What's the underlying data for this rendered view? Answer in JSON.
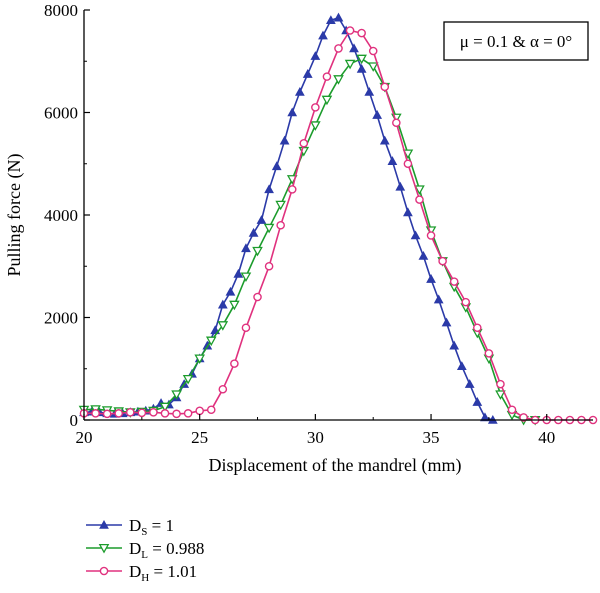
{
  "chart_data": {
    "type": "line",
    "title": "",
    "xlabel": "Displacement of the mandrel (mm)",
    "ylabel": "Pulling force (N)",
    "xlim": [
      20,
      42
    ],
    "ylim": [
      0,
      8000
    ],
    "xticks": [
      20,
      25,
      30,
      35,
      40
    ],
    "yticks": [
      0,
      2000,
      4000,
      6000,
      8000
    ],
    "annotation": "μ = 0.1 & α = 0°",
    "legend_position": "bottom-left",
    "series": [
      {
        "name": "DS = 1",
        "legend_main": "D",
        "legend_sub": "S",
        "legend_value": " = 1",
        "color": "#2b3aa8",
        "marker": "triangle-up",
        "x": [
          20,
          20.33,
          20.67,
          21,
          21.33,
          21.67,
          22,
          22.33,
          22.67,
          23,
          23.33,
          23.67,
          24,
          24.33,
          24.67,
          25,
          25.33,
          25.67,
          26,
          26.33,
          26.67,
          27,
          27.33,
          27.67,
          28,
          28.33,
          28.67,
          29,
          29.33,
          29.67,
          30,
          30.33,
          30.67,
          31,
          31.33,
          31.67,
          32,
          32.33,
          32.67,
          33,
          33.33,
          33.67,
          34,
          34.33,
          34.67,
          35,
          35.33,
          35.67,
          36,
          36.33,
          36.67,
          37,
          37.33,
          37.67
        ],
        "y": [
          150,
          160,
          150,
          130,
          120,
          130,
          150,
          160,
          180,
          220,
          330,
          300,
          440,
          700,
          900,
          1200,
          1450,
          1750,
          2250,
          2500,
          2850,
          3350,
          3650,
          3900,
          4500,
          4950,
          5450,
          6000,
          6400,
          6750,
          7100,
          7500,
          7800,
          7850,
          7600,
          7250,
          6850,
          6400,
          5950,
          5450,
          5050,
          4550,
          4050,
          3600,
          3200,
          2750,
          2350,
          1900,
          1450,
          1050,
          700,
          350,
          50,
          0
        ]
      },
      {
        "name": "DL = 0.988",
        "legend_main": "D",
        "legend_sub": "L",
        "legend_value": " = 0.988",
        "color": "#1c9c2c",
        "marker": "triangle-down",
        "x": [
          20,
          20.5,
          21,
          21.5,
          22,
          22.5,
          23,
          23.5,
          24,
          24.5,
          25,
          25.5,
          26,
          26.5,
          27,
          27.5,
          28,
          28.5,
          29,
          29.5,
          30,
          30.5,
          31,
          31.5,
          32,
          32.5,
          33,
          33.5,
          34,
          34.5,
          35,
          35.5,
          36,
          36.5,
          37,
          37.5,
          38,
          38.5,
          39,
          39.5
        ],
        "y": [
          200,
          210,
          190,
          170,
          150,
          160,
          180,
          260,
          500,
          800,
          1200,
          1550,
          1850,
          2250,
          2800,
          3300,
          3750,
          4200,
          4700,
          5250,
          5750,
          6250,
          6650,
          6950,
          7050,
          6900,
          6500,
          5900,
          5200,
          4500,
          3700,
          3100,
          2600,
          2200,
          1700,
          1200,
          500,
          100,
          0,
          0
        ]
      },
      {
        "name": "DH = 1.01",
        "legend_main": "D",
        "legend_sub": "H",
        "legend_value": " = 1.01",
        "color": "#e0317e",
        "marker": "circle",
        "x": [
          20,
          20.5,
          21,
          21.5,
          22,
          22.5,
          23,
          23.5,
          24,
          24.5,
          25,
          25.5,
          26,
          26.5,
          27,
          27.5,
          28,
          28.5,
          29,
          29.5,
          30,
          30.5,
          31,
          31.5,
          32,
          32.5,
          33,
          33.5,
          34,
          34.5,
          35,
          35.5,
          36,
          36.5,
          37,
          37.5,
          38,
          38.5,
          39,
          39.5,
          40,
          40.5,
          41,
          41.5,
          42
        ],
        "y": [
          130,
          130,
          120,
          130,
          150,
          140,
          150,
          130,
          120,
          130,
          180,
          200,
          600,
          1100,
          1800,
          2400,
          3000,
          3800,
          4500,
          5400,
          6100,
          6700,
          7250,
          7600,
          7550,
          7200,
          6500,
          5800,
          5000,
          4300,
          3600,
          3100,
          2700,
          2300,
          1800,
          1300,
          700,
          200,
          50,
          0,
          0,
          0,
          0,
          0,
          0
        ]
      }
    ]
  }
}
